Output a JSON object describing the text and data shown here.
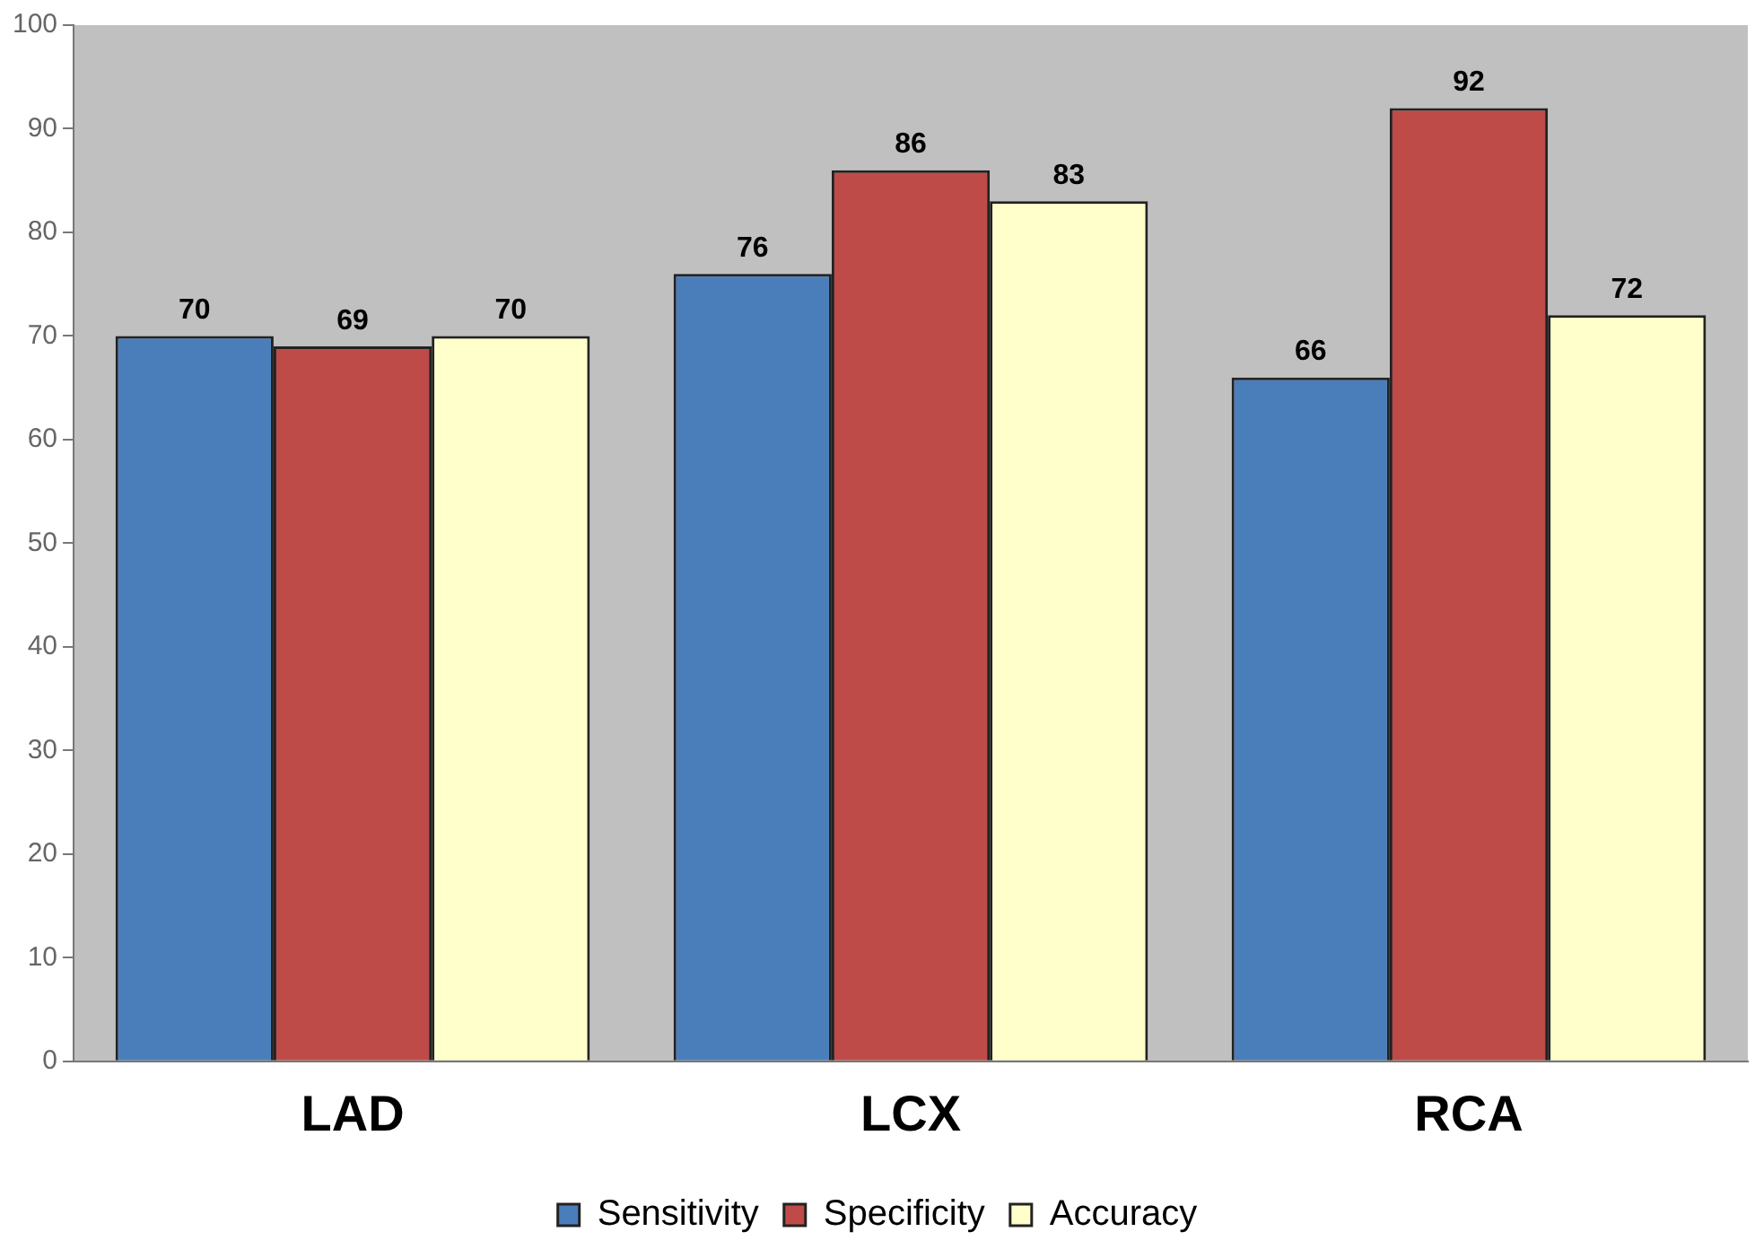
{
  "chart_data": {
    "type": "bar",
    "categories": [
      "LAD",
      "LCX",
      "RCA"
    ],
    "series": [
      {
        "name": "Sensitivity",
        "color": "#4a7ebb",
        "values": [
          70,
          76,
          66
        ]
      },
      {
        "name": "Specificity",
        "color": "#be4b48",
        "values": [
          69,
          86,
          92
        ]
      },
      {
        "name": "Accuracy",
        "color": "#ffffcc",
        "values": [
          70,
          83,
          72
        ]
      }
    ],
    "ylim": [
      0,
      100
    ],
    "yticks": [
      0,
      10,
      20,
      30,
      40,
      50,
      60,
      70,
      80,
      90,
      100
    ],
    "grid": false,
    "legend": "bottom",
    "data_labels": true
  }
}
